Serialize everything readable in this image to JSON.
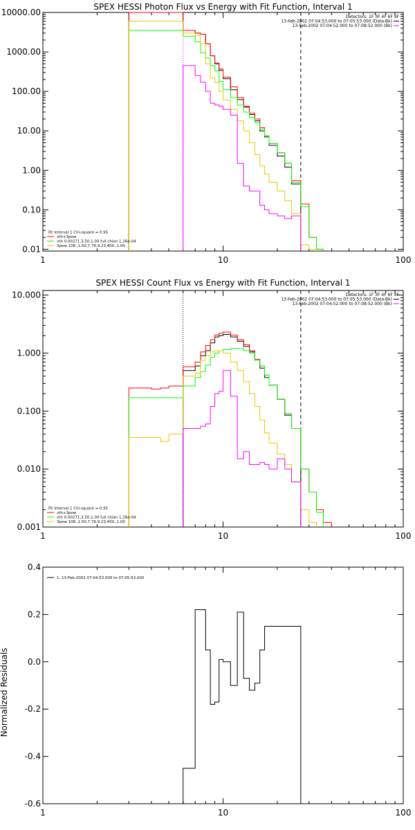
{
  "colors": {
    "background": "#ffffff",
    "axes": "#000000",
    "data": "#000000",
    "total_fit": "#ff0000",
    "thermal": "#00ff00",
    "power_law": "#e6c800",
    "background_spectrum": "#ff00ff"
  },
  "chart_data": [
    {
      "type": "line",
      "step": true,
      "title": "SPEX HESSI Photon Flux vs Energy with Fit Function, Interval 1",
      "xscale": "log",
      "yscale": "log",
      "xlim": [
        1,
        100
      ],
      "ylim": [
        0.009,
        10000
      ],
      "xticks": [
        1,
        10,
        100
      ],
      "xtick_labels": [
        "1",
        "10",
        "100"
      ],
      "yticks": [
        0.01,
        0.1,
        1,
        10,
        100,
        1000,
        10000
      ],
      "ytick_labels": [
        "0.01",
        "0.10",
        "1.00",
        "10.00",
        "100.00",
        "1000.00",
        "10000.00"
      ],
      "header_lines": [
        "Detectors: 1F 3F 4F 6F 9F",
        "13-Feb-2002 07:04:53.000 to 07:05:53.000 (Data-Bk)",
        "13-Feb-2002 07:04:52.000 to 07:08:52.000 (Bk)"
      ],
      "header_swatches": [
        "",
        "#000000",
        "#ff00ff"
      ],
      "legend": {
        "lines": [
          "Fit Interval 1    Chi-square = 0.95",
          "vth+3pow",
          "vth 0.00271,3.50,1.00  full chian 1.26e-04",
          "3pow 108.,1.50,7.79,9.23,400.,1.00"
        ],
        "swatches": [
          "",
          "#ff0000",
          "#00ff00",
          "#e6c800"
        ]
      },
      "vlines": [
        {
          "x": 6,
          "color": "#ff00ff",
          "style": "dotted"
        },
        {
          "x": 27,
          "color": "#000000",
          "style": "dashed"
        }
      ],
      "edges": [
        3,
        6,
        7,
        7.5,
        8,
        8.5,
        9,
        9.5,
        10,
        11,
        12,
        13,
        14,
        15,
        16,
        17,
        18,
        20,
        22,
        24,
        27,
        30,
        33,
        36
      ],
      "series": [
        {
          "color": "#000000",
          "values": [
            10000,
            3500,
            3000,
            2800,
            1600,
            800,
            500,
            340,
            210,
            110,
            62,
            40,
            26,
            18,
            10,
            7,
            4.3,
            2.3,
            1.2,
            0.45,
            null,
            null,
            null
          ]
        },
        {
          "color": "#ff0000",
          "values": [
            10000,
            3500,
            3000,
            2800,
            1600,
            800,
            520,
            370,
            230,
            130,
            70,
            42,
            28,
            20,
            12,
            7.5,
            4.8,
            2.8,
            1.5,
            0.55,
            0.14,
            0.02,
            0.01
          ]
        },
        {
          "color": "#00ff00",
          "values": [
            3500,
            2500,
            1800,
            950,
            700,
            450,
            330,
            180,
            110,
            70,
            45,
            30,
            22,
            16,
            11,
            7.5,
            4.8,
            2.8,
            1.5,
            0.5,
            0.12,
            0.02,
            0.01
          ]
        },
        {
          "color": "#e6c800",
          "values": [
            6000,
            3000,
            2600,
            1600,
            500,
            220,
            170,
            100,
            60,
            35,
            18,
            10,
            5,
            2.5,
            1.3,
            0.8,
            0.5,
            0.3,
            0.17,
            0.08,
            0.013,
            0.01,
            null
          ]
        },
        {
          "color": "#ff00ff",
          "values": [
            null,
            450,
            250,
            170,
            100,
            50,
            45,
            42,
            35,
            25,
            1.5,
            0.4,
            0.3,
            0.3,
            0.13,
            0.1,
            0.08,
            0.07,
            0.06,
            0.07,
            null,
            null,
            null
          ]
        }
      ]
    },
    {
      "type": "line",
      "step": true,
      "title": "SPEX HESSI Count Flux vs Energy with Fit Function, Interval 1",
      "xscale": "log",
      "yscale": "log",
      "xlim": [
        1,
        100
      ],
      "ylim": [
        0.001,
        12
      ],
      "xticks": [
        1,
        10,
        100
      ],
      "xtick_labels": [
        "1",
        "10",
        "100"
      ],
      "yticks": [
        0.001,
        0.01,
        0.1,
        1,
        10
      ],
      "ytick_labels": [
        "0.001",
        "0.010",
        "0.100",
        "1.000",
        "10.000"
      ],
      "header_lines": [
        "Detectors: 1F 3F 4F 6F 9F",
        "13-Feb-2002 07:04:53.000 to 07:05:53.000 (Data-Bk)",
        "13-Feb-2002 07:04:52.000 to 07:08:52.000 (Bk)"
      ],
      "header_swatches": [
        "",
        "#000000",
        "#ff00ff"
      ],
      "legend": {
        "lines": [
          "Fit Interval 1    Chi-square = 0.95",
          "vth+3pow",
          "vth 0.00271,3.50,1.00  full chian 1.26e-04",
          "3pow 108.,1.50,7.79,9.23,400.,1.00"
        ],
        "swatches": [
          "",
          "#ff0000",
          "#00ff00",
          "#e6c800"
        ]
      },
      "vlines": [
        {
          "x": 6,
          "color": "#000000",
          "style": "dotted"
        },
        {
          "x": 6,
          "color": "#ff00ff",
          "style": "dashed",
          "y_from": 0.001,
          "y_to": 0.05
        },
        {
          "x": 27,
          "color": "#000000",
          "style": "dashed"
        }
      ],
      "edges": [
        3,
        4,
        4.5,
        5,
        6,
        7,
        7.5,
        8,
        8.5,
        9,
        9.5,
        10,
        11,
        12,
        13,
        14,
        15,
        16,
        17,
        18,
        20,
        22,
        24,
        27,
        30,
        33,
        36,
        40
      ],
      "series": [
        {
          "color": "#000000",
          "values": [
            null,
            null,
            null,
            null,
            0.5,
            0.6,
            0.9,
            1.1,
            1.5,
            1.9,
            2.0,
            2.1,
            1.9,
            1.6,
            1.3,
            1.05,
            0.75,
            0.55,
            0.38,
            0.28,
            0.16,
            0.085,
            0.05,
            null,
            null,
            null,
            null
          ]
        },
        {
          "color": "#ff0000",
          "values": [
            0.25,
            0.24,
            0.25,
            0.27,
            0.58,
            0.7,
            1.05,
            1.35,
            1.7,
            2.05,
            2.2,
            2.3,
            2.05,
            1.7,
            1.4,
            1.1,
            0.78,
            0.6,
            0.42,
            0.28,
            0.16,
            0.09,
            0.05,
            0.01,
            0.004,
            0.002,
            0.0012
          ]
        },
        {
          "color": "#00ff00",
          "values": [
            0.17,
            0.17,
            0.17,
            0.17,
            0.27,
            0.38,
            0.48,
            0.62,
            0.85,
            1.0,
            1.1,
            1.15,
            1.2,
            1.2,
            1.1,
            1.0,
            0.75,
            0.6,
            0.42,
            0.28,
            0.16,
            0.09,
            0.05,
            0.01,
            0.004,
            0.0018,
            null
          ]
        },
        {
          "color": "#e6c800",
          "values": [
            0.035,
            0.035,
            0.03,
            0.04,
            0.4,
            0.45,
            0.75,
            0.9,
            1.05,
            1.1,
            1.1,
            1.0,
            0.7,
            0.5,
            0.32,
            0.2,
            0.12,
            0.07,
            0.042,
            0.028,
            0.018,
            0.012,
            0.006,
            0.002,
            0.0012,
            null,
            null
          ]
        },
        {
          "color": "#ff00ff",
          "values": [
            null,
            null,
            null,
            null,
            0.05,
            0.05,
            0.055,
            0.06,
            0.12,
            0.2,
            0.22,
            0.5,
            0.18,
            0.015,
            0.02,
            0.012,
            0.012,
            0.013,
            0.012,
            0.01,
            0.015,
            0.01,
            0.006,
            null,
            null,
            null,
            null
          ]
        }
      ]
    },
    {
      "type": "line",
      "step": true,
      "title": "",
      "xscale": "log",
      "yscale": "linear",
      "xlim": [
        1,
        100
      ],
      "ylim": [
        -0.6,
        0.4
      ],
      "xticks": [
        1,
        10,
        100
      ],
      "xtick_labels": [
        "1",
        "10",
        "100"
      ],
      "yticks": [
        -0.6,
        -0.4,
        -0.2,
        0.0,
        0.2,
        0.4
      ],
      "ytick_labels": [
        "-0.6",
        "-0.4",
        "-0.2",
        "0.0",
        "0.2",
        "0.4"
      ],
      "ylabel": "Normalized Residuals",
      "legend": {
        "lines": [
          "1. 13-Feb-2002 07:04:53.000 to 07:05:53.000"
        ],
        "swatches": [
          "#000000"
        ]
      },
      "edges": [
        6,
        7,
        7.5,
        8,
        8.5,
        9,
        9.5,
        10,
        11,
        12,
        13,
        14,
        15,
        16,
        17,
        18,
        20,
        22,
        24,
        27
      ],
      "series": [
        {
          "color": "#000000",
          "values": [
            -0.45,
            0.22,
            0.22,
            0.05,
            -0.18,
            -0.17,
            0.01,
            0.0,
            -0.1,
            0.21,
            -0.07,
            -0.12,
            -0.09,
            0.05,
            0.15,
            0.15,
            0.15,
            0.15,
            0.15
          ]
        }
      ]
    }
  ]
}
